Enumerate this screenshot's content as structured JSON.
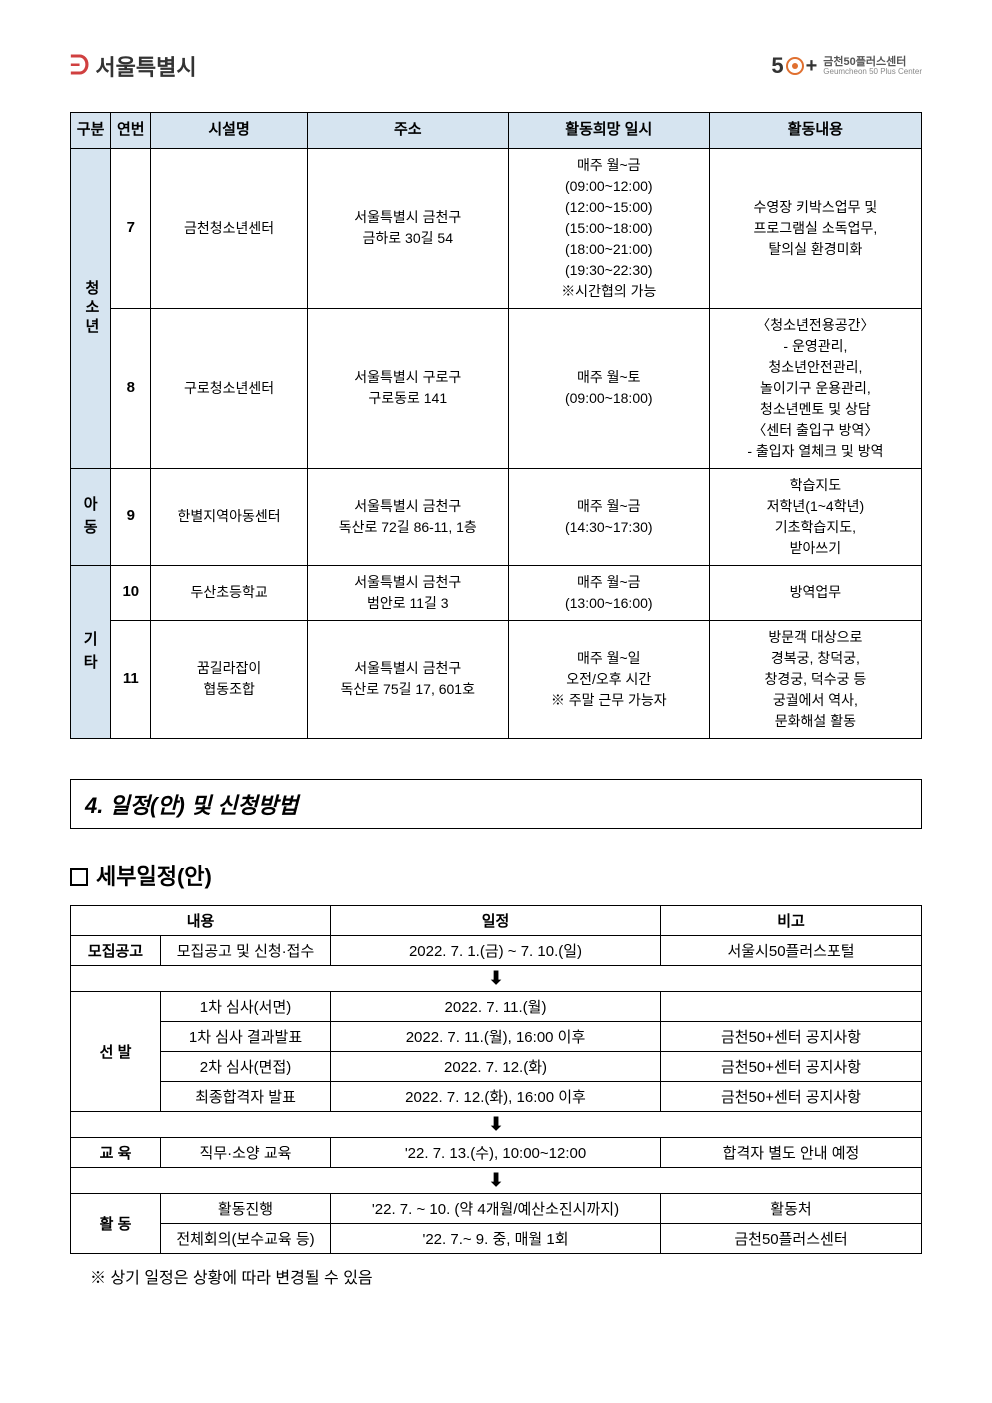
{
  "header": {
    "left_logo": "서울특별시",
    "right_five": "5",
    "right_plus": "+",
    "right_kr": "금천50플러스센터",
    "right_en": "Geumcheon 50 Plus Center"
  },
  "main_table": {
    "headers": [
      "구분",
      "연번",
      "시설명",
      "주소",
      "활동희망 일시",
      "활동내용"
    ],
    "groups": [
      {
        "cat": "청소년",
        "rows": [
          {
            "num": "7",
            "name": "금천청소년센터",
            "addr": "서울특별시 금천구\n금하로 30길 54",
            "time": "매주 월~금\n(09:00~12:00)\n(12:00~15:00)\n(15:00~18:00)\n(18:00~21:00)\n(19:30~22:30)\n※시간협의 가능",
            "desc": "수영장 키박스업무 및\n프로그램실 소독업무,\n탈의실 환경미화"
          },
          {
            "num": "8",
            "name": "구로청소년센터",
            "addr": "서울특별시 구로구\n구로동로 141",
            "time": "매주 월~토\n(09:00~18:00)",
            "desc": "〈청소년전용공간〉\n- 운영관리,\n청소년안전관리,\n놀이기구 운용관리,\n청소년멘토 및 상담\n〈센터 출입구 방역〉\n- 출입자 열체크 및 방역"
          }
        ]
      },
      {
        "cat": "아동",
        "rows": [
          {
            "num": "9",
            "name": "한별지역아동센터",
            "addr": "서울특별시 금천구\n독산로 72길 86-11, 1층",
            "time": "매주 월~금\n(14:30~17:30)",
            "desc": "학습지도\n저학년(1~4학년)\n기초학습지도,\n받아쓰기"
          }
        ]
      },
      {
        "cat": "기타",
        "rows": [
          {
            "num": "10",
            "name": "두산초등학교",
            "addr": "서울특별시 금천구\n범안로 11길 3",
            "time": "매주 월~금\n(13:00~16:00)",
            "desc": "방역업무"
          },
          {
            "num": "11",
            "name": "꿈길라잡이\n협동조합",
            "addr": "서울특별시 금천구\n독산로 75길 17, 601호",
            "time": "매주 월~일\n오전/오후 시간\n※ 주말 근무 가능자",
            "desc": "방문객 대상으로\n경복궁, 창덕궁,\n창경궁, 덕수궁 등\n궁궐에서 역사,\n문화해설 활동"
          }
        ]
      }
    ]
  },
  "section4": {
    "title": "4. 일정(안) 및 신청방법",
    "sub": "세부일정(안)"
  },
  "sched_table": {
    "headers": [
      "내용",
      "일정",
      "비고"
    ],
    "rows": [
      {
        "cat": "모집공고",
        "sub": "모집공고 및 신청·접수",
        "date": "2022. 7. 1.(금) ~ 7. 10.(일)",
        "note": "서울시50플러스포털"
      },
      {
        "arrow": true
      },
      {
        "cat": "선    발",
        "sub": "1차 심사(서면)",
        "date": "2022. 7. 11.(월)",
        "note": ""
      },
      {
        "sub": "1차 심사 결과발표",
        "date": "2022. 7. 11.(월), 16:00 이후",
        "note": "금천50+센터 공지사항"
      },
      {
        "sub": "2차 심사(면접)",
        "date": "2022. 7. 12.(화)",
        "note": "금천50+센터 공지사항"
      },
      {
        "sub": "최종합격자 발표",
        "date": "2022. 7. 12.(화), 16:00 이후",
        "note": "금천50+센터 공지사항"
      },
      {
        "arrow": true
      },
      {
        "cat": "교    육",
        "sub": "직무·소양 교육",
        "date": "'22. 7. 13.(수), 10:00~12:00",
        "note": "합격자 별도 안내 예정"
      },
      {
        "arrow": true
      },
      {
        "cat": "활    동",
        "sub": "활동진행",
        "date": "'22. 7. ~ 10. (약 4개월/예산소진시까지)",
        "note": "활동처"
      },
      {
        "sub": "전체회의(보수교육 등)",
        "date": "'22. 7.~ 9. 중, 매월 1회",
        "note": "금천50플러스센터"
      }
    ]
  },
  "footnote": "※ 상기 일정은 상황에 따라 변경될 수 있음"
}
